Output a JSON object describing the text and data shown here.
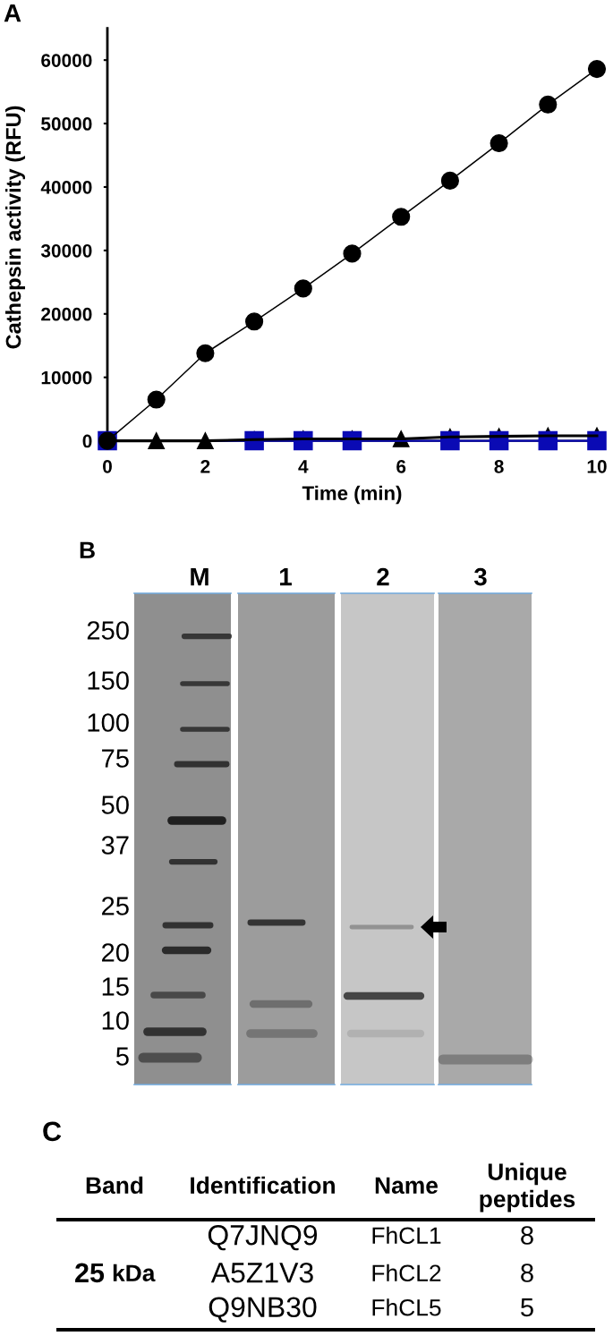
{
  "chart_data": [
    {
      "type": "line",
      "title": "A",
      "xlabel": "Time (min)",
      "ylabel": "Cathepsin activity (RFU)",
      "xlim": [
        0,
        10
      ],
      "ylim": [
        0,
        65000
      ],
      "xticks": [
        0,
        2,
        4,
        6,
        8,
        10
      ],
      "yticks": [
        0,
        10000,
        20000,
        30000,
        40000,
        50000,
        60000
      ],
      "line_style": "solid",
      "series": [
        {
          "color": "#000000",
          "marker": "circle",
          "x": [
            0,
            1,
            2,
            3,
            4,
            5,
            6,
            7,
            8,
            9,
            10
          ],
          "values": [
            0,
            6500,
            13800,
            18800,
            24000,
            29500,
            35300,
            41000,
            46900,
            53000,
            58600
          ]
        },
        {
          "color": "#000000",
          "marker": "triangle",
          "x": [
            0,
            1,
            2,
            3,
            4,
            5,
            6,
            7,
            8,
            9,
            10
          ],
          "values": [
            0,
            0,
            0,
            200,
            300,
            300,
            300,
            600,
            700,
            800,
            800
          ]
        },
        {
          "color": "#0a0ab4",
          "marker": "square",
          "x": [
            0,
            3,
            4,
            5,
            7,
            8,
            9,
            10
          ],
          "values": [
            0,
            0,
            0,
            0,
            0,
            0,
            0,
            0
          ]
        }
      ]
    },
    {
      "type": "other",
      "title": "B",
      "categories": [
        "M",
        "1",
        "2",
        "3"
      ],
      "annotations": [
        "250",
        "150",
        "100",
        "75",
        "50",
        "37",
        "25",
        "20",
        "15",
        "10",
        "5"
      ]
    },
    {
      "type": "other",
      "title": "C",
      "categories": [
        "Band",
        "Identification",
        "Name",
        "Unique\npeptides"
      ],
      "cell_labels": [
        [
          null,
          "Q7JNQ9",
          "FhCL1",
          "8"
        ],
        [
          "25 kDa",
          "A5Z1V3",
          "FhCL2",
          "8"
        ],
        [
          null,
          "Q9NB30",
          "FhCL5",
          "5"
        ]
      ]
    }
  ]
}
